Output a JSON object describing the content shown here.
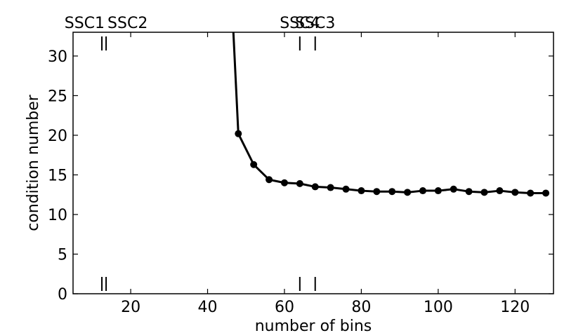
{
  "chart_data": {
    "type": "line",
    "title": "",
    "xlabel": "number of bins",
    "ylabel": "condition number",
    "xlim": [
      5,
      130
    ],
    "ylim": [
      0,
      33
    ],
    "x_ticks": [
      20,
      40,
      60,
      80,
      100,
      120
    ],
    "y_ticks": [
      0,
      5,
      10,
      15,
      20,
      25,
      30
    ],
    "grid": false,
    "legend": "none",
    "line_color": "#000000",
    "series": [
      {
        "x": [
          44,
          48,
          52,
          56,
          60,
          64,
          68,
          72,
          76,
          80,
          84,
          88,
          92,
          96,
          100,
          104,
          108,
          112,
          116,
          120,
          124,
          128
        ],
        "y": [
          60,
          20.2,
          16.3,
          14.4,
          14.0,
          13.9,
          13.5,
          13.4,
          13.2,
          13.0,
          12.9,
          12.9,
          12.8,
          13.0,
          13.0,
          13.2,
          12.9,
          12.8,
          13.0,
          12.8,
          12.7,
          12.7
        ],
        "markers": [
          false,
          true,
          true,
          true,
          true,
          true,
          true,
          true,
          true,
          true,
          true,
          true,
          true,
          true,
          true,
          true,
          true,
          true,
          true,
          true,
          true,
          true
        ]
      }
    ],
    "reference_markers": [
      {
        "label": "SSC1",
        "x": 12.5
      },
      {
        "label": "SSC2",
        "x": 13.6
      },
      {
        "label": "SSC4",
        "x": 64
      },
      {
        "label": "SSC3",
        "x": 68
      }
    ]
  }
}
